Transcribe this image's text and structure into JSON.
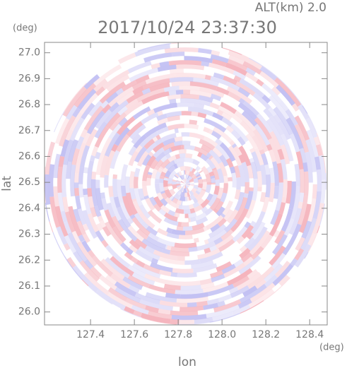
{
  "chart_data": {
    "type": "radar-image",
    "title": "2017/10/24 23:37:30",
    "subtitle": "ALT(km) 2.0",
    "x_label": "lon",
    "y_label": "lat",
    "x_unit": "(deg)",
    "y_unit": "(deg)",
    "xlim": [
      127.19,
      128.48
    ],
    "ylim": [
      25.95,
      27.04
    ],
    "xticks": [
      127.4,
      127.6,
      127.8,
      {
        "value": 128.0,
        "label": "128.0"
      },
      128.2,
      128.4
    ],
    "yticks": [
      {
        "value": 26.0,
        "label": "26.0"
      },
      26.1,
      26.2,
      26.3,
      26.4,
      26.5,
      26.6,
      26.7,
      26.8,
      26.9,
      {
        "value": 27.0,
        "label": "27.0"
      }
    ]
  }
}
